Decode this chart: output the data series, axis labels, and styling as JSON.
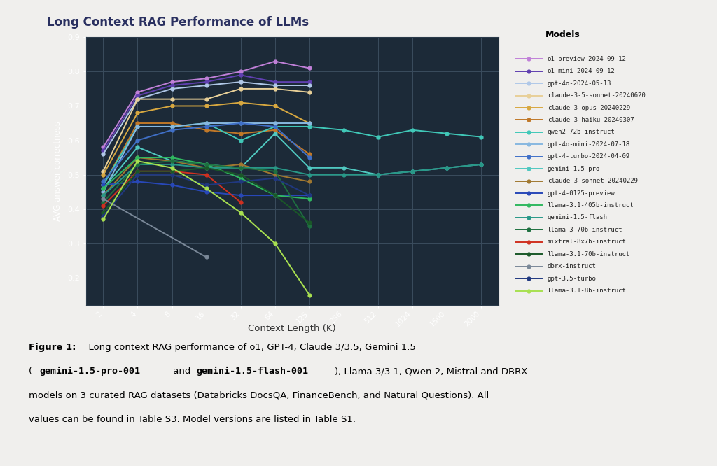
{
  "title": "Long Context RAG Performance of LLMs",
  "xlabel": "Context Length (K)",
  "ylabel": "AVG answer correctness",
  "plot_bg": "#1c2a38",
  "outer_bg": "#eeeeee",
  "panel_bg": "#edecea",
  "grid_color": "#3a4d5e",
  "title_color": "#2a3060",
  "x_ticks": [
    2,
    4,
    8,
    16,
    32,
    64,
    125,
    256,
    512,
    1024,
    1500,
    2000
  ],
  "models": [
    {
      "name": "o1-preview-2024-09-12",
      "color": "#c080d8",
      "data": [
        [
          2,
          0.58
        ],
        [
          4,
          0.74
        ],
        [
          8,
          0.77
        ],
        [
          16,
          0.78
        ],
        [
          32,
          0.8
        ],
        [
          64,
          0.83
        ],
        [
          125,
          0.81
        ]
      ]
    },
    {
      "name": "o1-mini-2024-09-12",
      "color": "#6040b0",
      "data": [
        [
          2,
          0.57
        ],
        [
          4,
          0.73
        ],
        [
          8,
          0.76
        ],
        [
          16,
          0.77
        ],
        [
          32,
          0.79
        ],
        [
          64,
          0.77
        ],
        [
          125,
          0.77
        ]
      ]
    },
    {
      "name": "gpt-4o-2024-05-13",
      "color": "#b0c8e8",
      "data": [
        [
          2,
          0.56
        ],
        [
          4,
          0.72
        ],
        [
          8,
          0.75
        ],
        [
          16,
          0.76
        ],
        [
          32,
          0.77
        ],
        [
          64,
          0.76
        ],
        [
          125,
          0.76
        ]
      ]
    },
    {
      "name": "claude-3-5-sonnet-20240620",
      "color": "#e8d098",
      "data": [
        [
          2,
          0.51
        ],
        [
          4,
          0.72
        ],
        [
          8,
          0.72
        ],
        [
          16,
          0.72
        ],
        [
          32,
          0.75
        ],
        [
          64,
          0.75
        ],
        [
          125,
          0.74
        ]
      ]
    },
    {
      "name": "claude-3-opus-20240229",
      "color": "#d8a840",
      "data": [
        [
          2,
          0.5
        ],
        [
          4,
          0.68
        ],
        [
          8,
          0.7
        ],
        [
          16,
          0.7
        ],
        [
          32,
          0.71
        ],
        [
          64,
          0.7
        ],
        [
          125,
          0.65
        ]
      ]
    },
    {
      "name": "claude-3-haiku-20240307",
      "color": "#c07828",
      "data": [
        [
          2,
          0.47
        ],
        [
          4,
          0.65
        ],
        [
          8,
          0.65
        ],
        [
          16,
          0.63
        ],
        [
          32,
          0.62
        ],
        [
          64,
          0.63
        ],
        [
          125,
          0.56
        ]
      ]
    },
    {
      "name": "qwen2-72b-instruct",
      "color": "#40c8b8",
      "data": [
        [
          2,
          0.47
        ],
        [
          4,
          0.64
        ],
        [
          8,
          0.64
        ],
        [
          16,
          0.65
        ],
        [
          32,
          0.6
        ],
        [
          64,
          0.64
        ],
        [
          125,
          0.64
        ],
        [
          256,
          0.63
        ],
        [
          512,
          0.61
        ],
        [
          1024,
          0.63
        ],
        [
          1500,
          0.62
        ],
        [
          2000,
          0.61
        ]
      ]
    },
    {
      "name": "gpt-4o-mini-2024-07-18",
      "color": "#88b8e0",
      "data": [
        [
          2,
          0.45
        ],
        [
          4,
          0.64
        ],
        [
          8,
          0.64
        ],
        [
          16,
          0.65
        ],
        [
          32,
          0.65
        ],
        [
          64,
          0.65
        ],
        [
          125,
          0.65
        ]
      ]
    },
    {
      "name": "gpt-4-turbo-2024-04-09",
      "color": "#4070c8",
      "data": [
        [
          2,
          0.48
        ],
        [
          4,
          0.6
        ],
        [
          8,
          0.63
        ],
        [
          16,
          0.64
        ],
        [
          32,
          0.65
        ],
        [
          64,
          0.64
        ],
        [
          125,
          0.55
        ]
      ]
    },
    {
      "name": "gemini-1.5-pro",
      "color": "#50c8c0",
      "data": [
        [
          2,
          0.46
        ],
        [
          4,
          0.58
        ],
        [
          8,
          0.54
        ],
        [
          16,
          0.53
        ],
        [
          32,
          0.52
        ],
        [
          64,
          0.62
        ],
        [
          125,
          0.52
        ],
        [
          256,
          0.52
        ],
        [
          512,
          0.5
        ],
        [
          1024,
          0.51
        ],
        [
          1500,
          0.52
        ],
        [
          2000,
          0.53
        ]
      ]
    },
    {
      "name": "claude-3-sonnet-20240229",
      "color": "#a07830",
      "data": [
        [
          2,
          0.44
        ],
        [
          4,
          0.55
        ],
        [
          8,
          0.54
        ],
        [
          16,
          0.52
        ],
        [
          32,
          0.53
        ],
        [
          64,
          0.5
        ],
        [
          125,
          0.48
        ]
      ]
    },
    {
      "name": "gpt-4-0125-preview",
      "color": "#2848b8",
      "data": [
        [
          2,
          0.47
        ],
        [
          4,
          0.48
        ],
        [
          8,
          0.47
        ],
        [
          16,
          0.45
        ],
        [
          32,
          0.44
        ],
        [
          64,
          0.44
        ],
        [
          125,
          0.44
        ]
      ]
    },
    {
      "name": "llama-3.1-405b-instruct",
      "color": "#30b860",
      "data": [
        [
          2,
          0.46
        ],
        [
          4,
          0.55
        ],
        [
          8,
          0.55
        ],
        [
          16,
          0.53
        ],
        [
          32,
          0.49
        ],
        [
          64,
          0.44
        ],
        [
          125,
          0.43
        ]
      ]
    },
    {
      "name": "gemini-1.5-flash",
      "color": "#289888",
      "data": [
        [
          2,
          0.44
        ],
        [
          4,
          0.53
        ],
        [
          8,
          0.53
        ],
        [
          16,
          0.52
        ],
        [
          32,
          0.52
        ],
        [
          64,
          0.52
        ],
        [
          125,
          0.5
        ],
        [
          256,
          0.5
        ],
        [
          512,
          0.5
        ],
        [
          1024,
          0.51
        ],
        [
          1500,
          0.52
        ],
        [
          2000,
          0.53
        ]
      ]
    },
    {
      "name": "llama-3-70b-instruct",
      "color": "#1e7040",
      "data": [
        [
          2,
          0.42
        ],
        [
          4,
          0.53
        ],
        [
          8,
          0.54
        ],
        [
          16,
          0.53
        ],
        [
          32,
          0.52
        ],
        [
          64,
          0.51
        ],
        [
          125,
          0.35
        ]
      ]
    },
    {
      "name": "mixtral-8x7b-instruct",
      "color": "#d03020",
      "data": [
        [
          2,
          0.41
        ],
        [
          4,
          0.51
        ],
        [
          8,
          0.51
        ],
        [
          16,
          0.5
        ],
        [
          32,
          0.42
        ]
      ]
    },
    {
      "name": "llama-3.1-70b-instruct",
      "color": "#1a5828",
      "data": [
        [
          2,
          0.39
        ],
        [
          4,
          0.51
        ],
        [
          8,
          0.51
        ],
        [
          16,
          0.52
        ],
        [
          32,
          0.5
        ],
        [
          64,
          0.44
        ],
        [
          125,
          0.36
        ]
      ]
    },
    {
      "name": "dbrx-instruct",
      "color": "#7a8898",
      "data": [
        [
          2,
          0.43
        ],
        [
          16,
          0.26
        ]
      ]
    },
    {
      "name": "gpt-3.5-turbo",
      "color": "#203880",
      "data": [
        [
          2,
          0.38
        ],
        [
          4,
          0.5
        ],
        [
          8,
          0.5
        ],
        [
          16,
          0.47
        ],
        [
          32,
          0.48
        ],
        [
          64,
          0.49
        ],
        [
          125,
          0.44
        ]
      ]
    },
    {
      "name": "llama-3.1-8b-instruct",
      "color": "#a8e050",
      "data": [
        [
          2,
          0.37
        ],
        [
          4,
          0.54
        ],
        [
          8,
          0.52
        ],
        [
          16,
          0.46
        ],
        [
          32,
          0.39
        ],
        [
          64,
          0.3
        ],
        [
          125,
          0.15
        ]
      ]
    }
  ],
  "caption_prefix": "Figure 1:",
  "caption_normal": "  Long context RAG performance of o1, GPT-4, Claude 3/3.5, Gemini 1.5",
  "caption_line2_pre": "(",
  "caption_mono1": "gemini-1.5-pro-001",
  "caption_line2_mid": " and ",
  "caption_mono2": "gemini-1.5-flash-001",
  "caption_line2_post": "), Llama 3/3.1, Qwen 2, Mistral and DBRX",
  "caption_line3": "models on 3 curated RAG datasets (Databricks DocsQA, FinanceBench, and Natural Questions). All",
  "caption_line4": "values can be found in Table S3. Model versions are listed in Table S1."
}
